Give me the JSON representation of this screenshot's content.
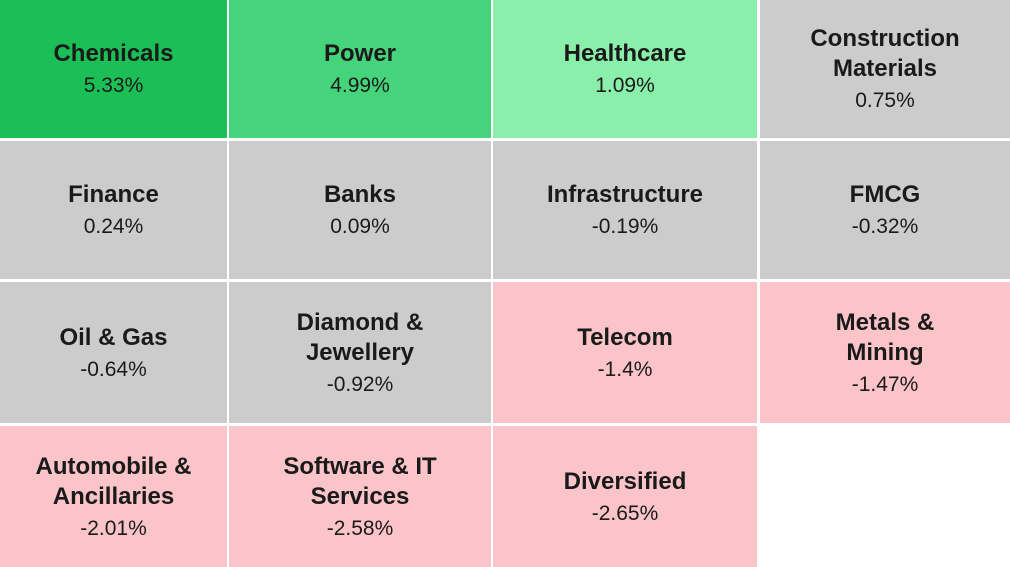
{
  "sectors": [
    {
      "name": "Chemicals",
      "change": "5.33%",
      "color": "#1cbf56"
    },
    {
      "name": "Power",
      "change": "4.99%",
      "color": "#45d47c"
    },
    {
      "name": "Healthcare",
      "change": "1.09%",
      "color": "#89efaa"
    },
    {
      "name": "Construction\nMaterials",
      "change": "0.75%",
      "color": "#cccccc"
    },
    {
      "name": "Finance",
      "change": "0.24%",
      "color": "#cccccc"
    },
    {
      "name": "Banks",
      "change": "0.09%",
      "color": "#cccccc"
    },
    {
      "name": "Infrastructure",
      "change": "-0.19%",
      "color": "#cccccc"
    },
    {
      "name": "FMCG",
      "change": "-0.32%",
      "color": "#cccccc"
    },
    {
      "name": "Oil & Gas",
      "change": "-0.64%",
      "color": "#cccccc"
    },
    {
      "name": "Diamond &\nJewellery",
      "change": "-0.92%",
      "color": "#cccccc"
    },
    {
      "name": "Telecom",
      "change": "-1.4%",
      "color": "#fbc4c9"
    },
    {
      "name": "Metals &\nMining",
      "change": "-1.47%",
      "color": "#fbc4c9"
    },
    {
      "name": "Automobile &\nAncillaries",
      "change": "-2.01%",
      "color": "#fbc4c9"
    },
    {
      "name": "Software & IT\nServices",
      "change": "-2.58%",
      "color": "#fbc4c9"
    },
    {
      "name": "Diversified",
      "change": "-2.65%",
      "color": "#fbc4c9"
    }
  ]
}
